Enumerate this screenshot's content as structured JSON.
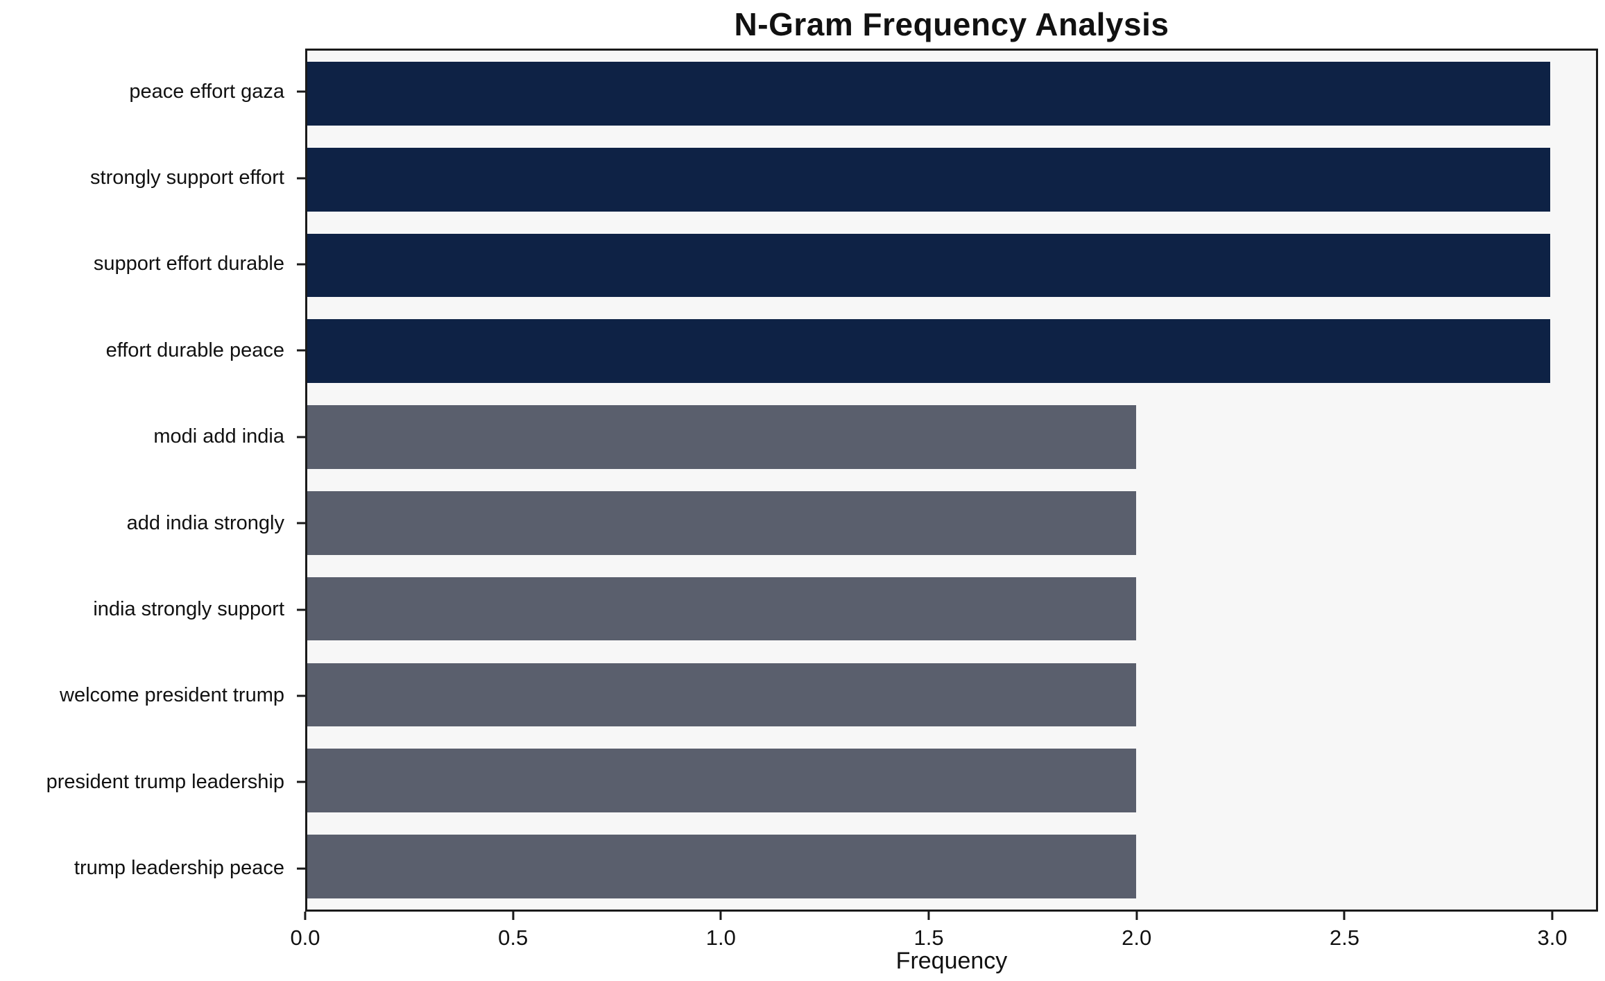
{
  "chart_data": {
    "type": "bar",
    "orientation": "horizontal",
    "title": "N-Gram Frequency Analysis",
    "xlabel": "Frequency",
    "ylabel": "",
    "categories": [
      "peace effort gaza",
      "strongly support effort",
      "support effort durable",
      "effort durable peace",
      "modi add india",
      "add india strongly",
      "india strongly support",
      "welcome president trump",
      "president trump leadership",
      "trump leadership peace"
    ],
    "values": [
      3,
      3,
      3,
      3,
      2,
      2,
      2,
      2,
      2,
      2
    ],
    "bar_colors": [
      "#0e2245",
      "#0e2245",
      "#0e2245",
      "#0e2245",
      "#5a5f6d",
      "#5a5f6d",
      "#5a5f6d",
      "#5a5f6d",
      "#5a5f6d",
      "#5a5f6d"
    ],
    "xlim": [
      0,
      3.11
    ],
    "xticks": [
      0.0,
      0.5,
      1.0,
      1.5,
      2.0,
      2.5,
      3.0
    ],
    "xtick_labels": [
      "0.0",
      "0.5",
      "1.0",
      "1.5",
      "2.0",
      "2.5",
      "3.0"
    ],
    "grid": false,
    "legend": null,
    "colors": {
      "high_value_bar": "#0e2245",
      "low_value_bar": "#5a5f6d",
      "plot_background": "#f7f7f7",
      "figure_background": "#ffffff",
      "spine": "#1a1a1a",
      "text": "#111111"
    }
  }
}
